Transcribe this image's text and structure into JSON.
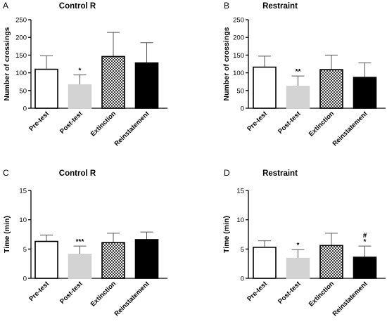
{
  "chart_data": [
    {
      "panel": "A",
      "type": "bar",
      "title": "Control R",
      "ylabel": "Number of crossings",
      "ylim": [
        0,
        250
      ],
      "yticks": [
        0,
        50,
        100,
        150,
        200,
        250
      ],
      "categories": [
        "Pre-test",
        "Post-test",
        "Extinction",
        "Reinstatement"
      ],
      "values": [
        110,
        66,
        146,
        128
      ],
      "errors": [
        38,
        28,
        68,
        57
      ],
      "fills": [
        "white",
        "lightgray",
        "checker",
        "black"
      ],
      "annotations": [
        "",
        "*",
        "",
        ""
      ]
    },
    {
      "panel": "B",
      "type": "bar",
      "title": "Restraint",
      "ylabel": "Number of crossings",
      "ylim": [
        0,
        250
      ],
      "yticks": [
        0,
        50,
        100,
        150,
        200,
        250
      ],
      "categories": [
        "Pre-test",
        "Post-test",
        "Extinction",
        "Reinstatement"
      ],
      "values": [
        116,
        62,
        109,
        87
      ],
      "errors": [
        31,
        29,
        41,
        41
      ],
      "fills": [
        "white",
        "lightgray",
        "checker",
        "black"
      ],
      "annotations": [
        "",
        "**",
        "",
        ""
      ]
    },
    {
      "panel": "C",
      "type": "bar",
      "title": "Control R",
      "ylabel": "Time (min)",
      "ylim": [
        0,
        15
      ],
      "yticks": [
        0,
        5,
        10,
        15
      ],
      "categories": [
        "Pre-test",
        "Post-test",
        "Extinction",
        "Reinstatement"
      ],
      "values": [
        6.3,
        4.1,
        6.1,
        6.6
      ],
      "errors": [
        1.1,
        1.4,
        1.6,
        1.3
      ],
      "fills": [
        "white",
        "lightgray",
        "checker",
        "black"
      ],
      "annotations": [
        "",
        "***",
        "",
        ""
      ]
    },
    {
      "panel": "D",
      "type": "bar",
      "title": "Restraint",
      "ylabel": "Time (min)",
      "ylim": [
        0,
        15
      ],
      "yticks": [
        0,
        5,
        10,
        15
      ],
      "categories": [
        "Pre-test",
        "Post-test",
        "Extinction",
        "Reinstatement"
      ],
      "values": [
        5.3,
        3.4,
        5.6,
        3.6
      ],
      "errors": [
        1.1,
        1.5,
        2.1,
        1.9
      ],
      "fills": [
        "white",
        "lightgray",
        "checker",
        "black"
      ],
      "annotations": [
        "",
        "*",
        "",
        "#\n*"
      ]
    }
  ],
  "colors": {
    "lightgray": "#d3d3d3",
    "black": "#000000",
    "white": "#ffffff",
    "checker_dark": "#3a3a3a",
    "checker_light": "#f2f2f2",
    "errorbar": "#555555"
  }
}
